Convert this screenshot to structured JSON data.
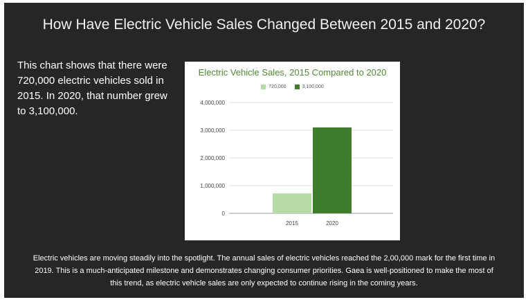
{
  "slide": {
    "title": "How Have Electric Vehicle Sales Changed Between 2015 and 2020?",
    "intro": "This chart shows that there were 720,000 electric vehicles sold in 2015. In 2020, that number grew to 3,100,000.",
    "footer": "Electric vehicles are moving steadily into the spotlight. The annual sales of electric vehicles reached the 2,00,000 mark for the first time in 2019. This is a much-anticipated milestone and demonstrates changing consumer priorities. Gaea is well-positioned to make the most of this trend, as electric vehicle sales are only expected to continue rising in the coming years."
  },
  "colors": {
    "background": "#262626",
    "bar_2015": "#b7dba6",
    "bar_2020": "#3f7d2c",
    "chart_title": "#4e8a32"
  },
  "chart_data": {
    "type": "bar",
    "title": "Electric Vehicle Sales, 2015 Compared to 2020",
    "categories": [
      "2015",
      "2020"
    ],
    "series": [
      {
        "name": "720,000",
        "values": [
          720000,
          null
        ]
      },
      {
        "name": "3,100,000",
        "values": [
          null,
          3100000
        ]
      }
    ],
    "yticks": [
      0,
      1000000,
      2000000,
      3000000,
      4000000
    ],
    "ytick_labels": [
      "0",
      "1,000,000",
      "2,000,000",
      "3,000,000",
      "4,000,000"
    ],
    "ylim": [
      0,
      4000000
    ],
    "xlabel": "",
    "ylabel": "",
    "legend_position": "top"
  }
}
